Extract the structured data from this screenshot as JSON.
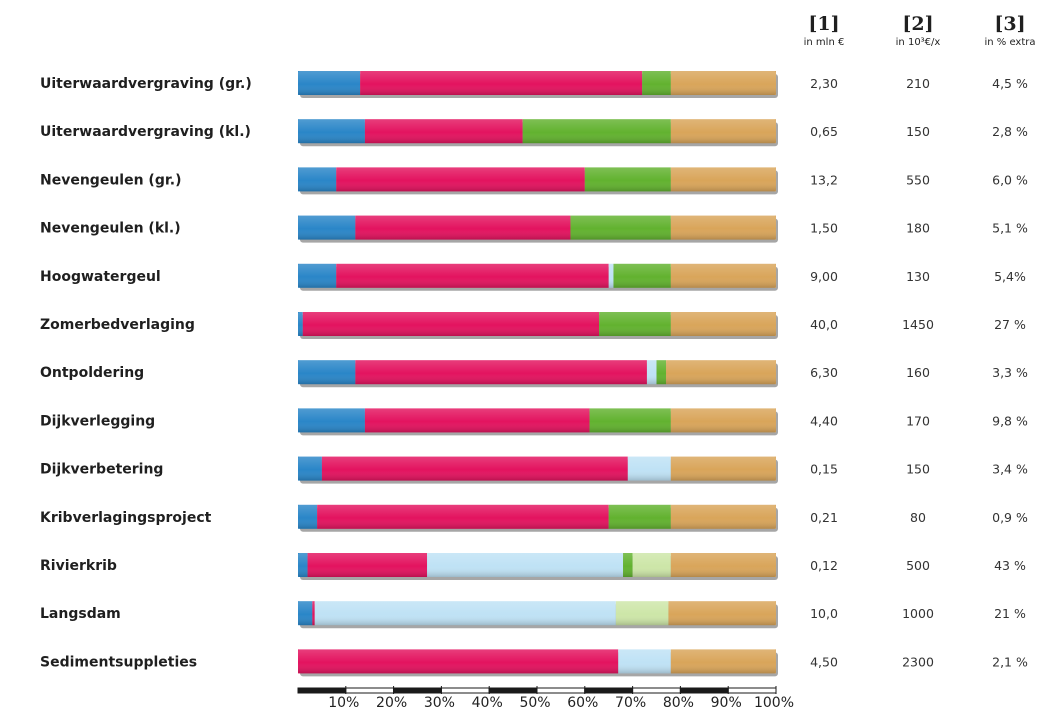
{
  "chart_data": {
    "type": "bar",
    "stacked": true,
    "orientation": "horizontal",
    "categories": [
      "Uiterwaardvergraving (gr.)",
      "Uiterwaardvergraving (kl.)",
      "Nevengeulen (gr.)",
      "Nevengeulen (kl.)",
      "Hoogwatergeul",
      "Zomerbedverlaging",
      "Ontpoldering",
      "Dijkverlegging",
      "Dijkverbetering",
      "Kribverlagingsproject",
      "Rivierkrib",
      "Langsdam",
      "Sedimentsuppleties"
    ],
    "series": [
      {
        "color": "#2a86c8",
        "values": [
          13,
          14,
          8,
          12,
          8,
          1,
          12,
          14,
          5,
          4,
          2,
          3,
          0
        ]
      },
      {
        "color": "#e3135f",
        "values": [
          59,
          33,
          52,
          45,
          57,
          62,
          61,
          47,
          64,
          61,
          25,
          0.5,
          67
        ]
      },
      {
        "color": "#bfe2f5",
        "values": [
          0,
          0,
          0,
          0,
          1,
          0,
          2,
          0,
          9,
          0,
          41,
          63,
          11
        ]
      },
      {
        "color": "#62b22f",
        "values": [
          6,
          31,
          18,
          21,
          12,
          15,
          2,
          17,
          0,
          13,
          2,
          0,
          0
        ]
      },
      {
        "color": "#cde6a8",
        "values": [
          0,
          0,
          0,
          0,
          0,
          0,
          0,
          0,
          0,
          0,
          8,
          11,
          0
        ]
      },
      {
        "color": "#d9a55a",
        "values": [
          22,
          22,
          22,
          22,
          22,
          22,
          23,
          22,
          22,
          22,
          22,
          22.5,
          22
        ]
      }
    ],
    "xlim": [
      0,
      100
    ],
    "x_ticks": [
      "10%",
      "20%",
      "30%",
      "40%",
      "50%",
      "60%",
      "70%",
      "80%",
      "90%",
      "100%"
    ],
    "columns": [
      {
        "header": "[1]",
        "sub": "in mln €",
        "values": [
          "2,30",
          "0,65",
          "13,2",
          "1,50",
          "9,00",
          "40,0",
          "6,30",
          "4,40",
          "0,15",
          "0,21",
          "0,12",
          "10,0",
          "4,50"
        ]
      },
      {
        "header": "[2]",
        "sub": "in 10³€/x",
        "values": [
          "210",
          "150",
          "550",
          "180",
          "130",
          "1450",
          "160",
          "170",
          "150",
          "80",
          "500",
          "1000",
          "2300"
        ]
      },
      {
        "header": "[3]",
        "sub": "in % extra",
        "values": [
          "4,5 %",
          "2,8 %",
          "6,0 %",
          "5,1 %",
          "5,4%",
          "27 %",
          "3,3 %",
          "9,8 %",
          "3,4 %",
          "0,9 %",
          "43 %",
          "21 %",
          "2,1 %"
        ]
      }
    ]
  }
}
